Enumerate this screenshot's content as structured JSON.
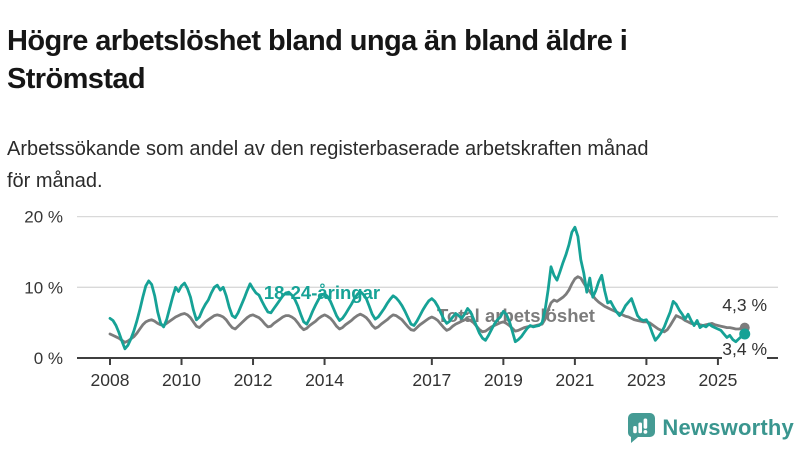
{
  "header": {
    "title": "Högre arbetslöshet bland unga än bland äldre i\nStrömstad",
    "subtitle": "Arbetssökande som andel av den registerbaserade arbetskraften månad\nför månad."
  },
  "chart_data": {
    "type": "line",
    "x_unit": "month",
    "x_start": "2008-01",
    "x_end": "2025-10",
    "ylim": [
      0,
      20
    ],
    "grid": "horizontal",
    "y_ticks": [
      {
        "value": 0,
        "label": "0 %"
      },
      {
        "value": 10,
        "label": "10 %"
      },
      {
        "value": 20,
        "label": "20 %"
      }
    ],
    "x_tick_years": [
      2008,
      2010,
      2012,
      2014,
      2017,
      2019,
      2021,
      2023,
      2025
    ],
    "series": [
      {
        "name": "Total arbetslöshet",
        "color": "#7c7c7c",
        "end_value_label": "4,3 %",
        "values": [
          3.4,
          3.2,
          3.0,
          2.8,
          2.5,
          2.2,
          2.4,
          2.7,
          3.0,
          3.5,
          4.1,
          4.7,
          5.1,
          5.3,
          5.4,
          5.2,
          4.9,
          4.7,
          4.6,
          4.9,
          5.2,
          5.5,
          5.8,
          6.0,
          6.2,
          6.3,
          6.1,
          5.7,
          5.1,
          4.5,
          4.3,
          4.7,
          5.1,
          5.4,
          5.7,
          6.0,
          6.1,
          6.0,
          5.8,
          5.4,
          4.8,
          4.3,
          4.1,
          4.5,
          4.9,
          5.3,
          5.7,
          6.0,
          6.1,
          5.9,
          5.7,
          5.3,
          4.8,
          4.4,
          4.5,
          4.9,
          5.2,
          5.5,
          5.8,
          6.0,
          6.0,
          5.8,
          5.5,
          5.0,
          4.4,
          4.0,
          4.2,
          4.6,
          4.9,
          5.2,
          5.6,
          5.9,
          6.1,
          5.9,
          5.6,
          5.1,
          4.5,
          4.1,
          4.3,
          4.7,
          5.0,
          5.3,
          5.7,
          6.0,
          6.2,
          6.0,
          5.7,
          5.2,
          4.6,
          4.2,
          4.4,
          4.8,
          5.1,
          5.4,
          5.8,
          6.1,
          6.0,
          5.7,
          5.4,
          4.9,
          4.4,
          4.0,
          3.9,
          4.3,
          4.7,
          5.0,
          5.3,
          5.6,
          5.8,
          5.6,
          5.3,
          4.8,
          4.3,
          3.9,
          4.1,
          4.5,
          4.8,
          5.0,
          5.2,
          5.4,
          5.5,
          5.3,
          5.0,
          4.5,
          4.0,
          3.7,
          3.8,
          4.1,
          4.4,
          4.6,
          4.8,
          5.0,
          5.1,
          4.9,
          4.6,
          4.2,
          3.8,
          3.9,
          4.1,
          4.3,
          4.4,
          4.5,
          4.5,
          4.6,
          4.7,
          4.8,
          5.5,
          6.8,
          7.8,
          8.2,
          8.0,
          8.3,
          8.6,
          9.0,
          9.6,
          10.5,
          11.2,
          11.5,
          11.3,
          10.6,
          9.9,
          9.4,
          8.8,
          8.3,
          7.9,
          7.6,
          7.3,
          7.1,
          6.9,
          6.7,
          6.5,
          6.3,
          6.1,
          5.9,
          5.8,
          5.6,
          5.4,
          5.3,
          5.2,
          5.1,
          5.1,
          5.0,
          4.7,
          4.4,
          4.1,
          3.9,
          3.7,
          4.0,
          4.6,
          5.3,
          6.0,
          5.8,
          5.6,
          5.3,
          5.1,
          4.9,
          4.8,
          4.9,
          4.7,
          4.6,
          4.7,
          4.8,
          4.9,
          4.7,
          4.6,
          4.5,
          4.4,
          4.3,
          4.3,
          4.2,
          4.1,
          4.1,
          4.2,
          4.3
        ]
      },
      {
        "name": "18-24-åringar",
        "color": "#16a296",
        "end_value_label": "3,4 %",
        "values": [
          5.6,
          5.3,
          4.6,
          3.6,
          2.4,
          1.3,
          1.8,
          2.7,
          3.8,
          5.2,
          6.8,
          8.6,
          10.2,
          10.9,
          10.4,
          8.8,
          6.5,
          4.9,
          4.4,
          5.4,
          7.0,
          8.6,
          10.0,
          9.4,
          10.2,
          10.6,
          9.8,
          8.6,
          6.8,
          5.4,
          5.8,
          6.8,
          7.6,
          8.2,
          9.2,
          10.0,
          10.3,
          9.6,
          10.0,
          8.8,
          7.2,
          6.0,
          5.7,
          6.4,
          7.4,
          8.4,
          9.5,
          10.5,
          9.8,
          9.2,
          8.9,
          8.0,
          7.2,
          6.5,
          6.4,
          7.0,
          7.6,
          8.2,
          8.8,
          9.2,
          9.3,
          8.9,
          8.3,
          7.4,
          6.2,
          5.1,
          4.8,
          5.6,
          6.6,
          7.5,
          8.3,
          8.9,
          9.1,
          8.7,
          8.0,
          7.0,
          6.0,
          5.3,
          5.6,
          6.2,
          6.9,
          7.6,
          8.4,
          9.0,
          9.4,
          9.0,
          8.4,
          7.3,
          6.2,
          5.5,
          5.8,
          6.4,
          7.0,
          7.7,
          8.3,
          8.8,
          8.5,
          8.0,
          7.4,
          6.6,
          5.7,
          4.8,
          4.6,
          5.2,
          6.0,
          6.8,
          7.5,
          8.1,
          8.4,
          8.0,
          7.3,
          6.4,
          5.5,
          4.9,
          5.2,
          5.8,
          6.3,
          6.0,
          5.6,
          6.2,
          7.0,
          6.5,
          5.5,
          4.5,
          3.5,
          2.8,
          2.5,
          3.2,
          4.0,
          4.8,
          5.4,
          5.8,
          6.6,
          6.2,
          5.2,
          3.8,
          2.3,
          2.6,
          3.0,
          3.6,
          4.2,
          4.6,
          4.4,
          4.5,
          4.6,
          5.0,
          6.8,
          9.6,
          12.9,
          11.7,
          11.0,
          12.2,
          13.5,
          14.6,
          16.0,
          17.8,
          18.5,
          17.2,
          13.9,
          12.0,
          9.3,
          11.3,
          8.6,
          9.5,
          10.8,
          11.7,
          9.5,
          7.8,
          8.0,
          7.2,
          6.5,
          6.0,
          6.6,
          7.4,
          7.9,
          8.4,
          7.2,
          6.0,
          5.5,
          5.3,
          5.4,
          4.7,
          3.5,
          2.5,
          3.0,
          3.6,
          4.4,
          5.5,
          6.5,
          8.0,
          7.6,
          6.8,
          6.2,
          5.5,
          6.2,
          5.3,
          4.6,
          5.3,
          4.3,
          4.6,
          4.4,
          4.8,
          4.5,
          4.3,
          4.1,
          3.9,
          3.4,
          2.9,
          3.2,
          2.6,
          2.3,
          2.7,
          3.1,
          3.4
        ]
      }
    ]
  },
  "footer": {
    "brand": "Newsworthy",
    "brand_color": "#3a968f",
    "logo_icon": "bar-chart-speech-bubble-icon"
  }
}
